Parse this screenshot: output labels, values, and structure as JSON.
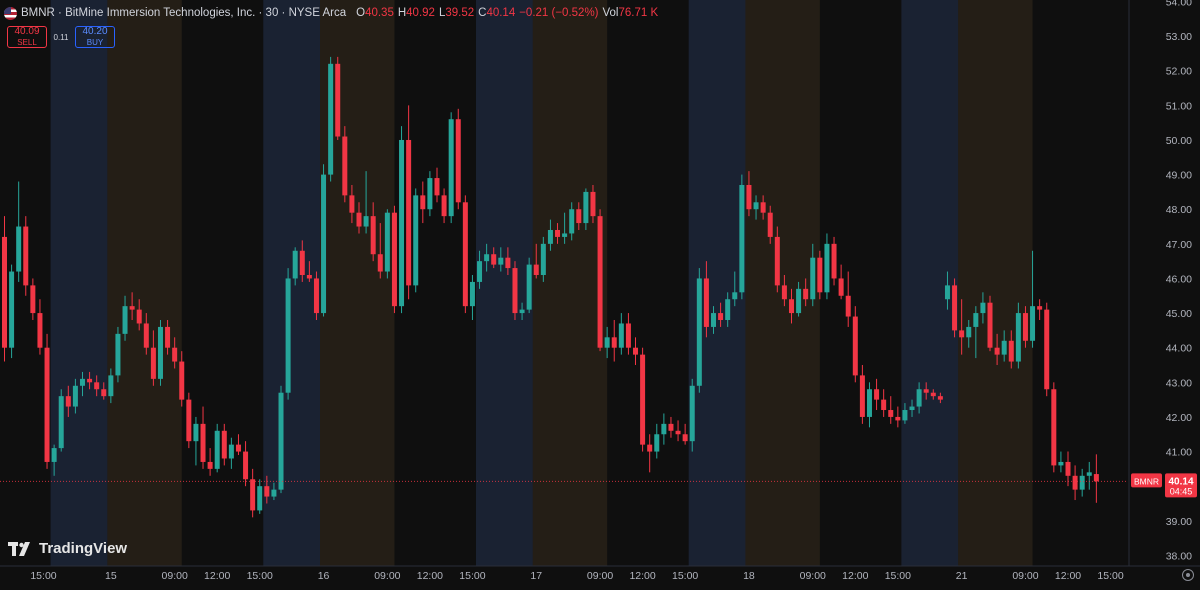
{
  "header": {
    "title": "BMNR · BitMine Immersion Technologies, Inc. · 30 · NYSE Arca",
    "ohlc": [
      {
        "k": "O",
        "v": "40.35"
      },
      {
        "k": "H",
        "v": "40.92"
      },
      {
        "k": "L",
        "v": "39.52"
      },
      {
        "k": "C",
        "v": "40.14"
      },
      {
        "k": "",
        "v": "−0.21 (−0.52%)"
      }
    ],
    "vol_label": "Vol",
    "vol_value": "76.71 K",
    "sell_price": "40.09",
    "sell_label": "SELL",
    "spread": "0.11",
    "buy_price": "40.20",
    "buy_label": "BUY"
  },
  "brand": "TradingView",
  "colors": {
    "up": "#26a69a",
    "down": "#f23645",
    "premarket_band": "#1a2232",
    "afterhours_band": "#241e16",
    "background": "#0f0f0f"
  },
  "chart_data": {
    "type": "candlestick",
    "symbol": "BMNR",
    "interval": "30",
    "exchange": "NYSE Arca",
    "price_range": [
      38.0,
      54.0
    ],
    "y_ticks": [
      "54.00",
      "53.00",
      "52.00",
      "51.00",
      "50.00",
      "49.00",
      "48.00",
      "47.00",
      "46.00",
      "45.00",
      "44.00",
      "43.00",
      "42.00",
      "41.00",
      "40.00",
      "39.00",
      "38.00"
    ],
    "x_ticks": [
      {
        "bar": 5.5,
        "label": "15:00"
      },
      {
        "bar": 15,
        "label": "15"
      },
      {
        "bar": 24,
        "label": "09:00"
      },
      {
        "bar": 30,
        "label": "12:00"
      },
      {
        "bar": 36,
        "label": "15:00"
      },
      {
        "bar": 45,
        "label": "16"
      },
      {
        "bar": 54,
        "label": "09:00"
      },
      {
        "bar": 60,
        "label": "12:00"
      },
      {
        "bar": 66,
        "label": "15:00"
      },
      {
        "bar": 75,
        "label": "17"
      },
      {
        "bar": 84,
        "label": "09:00"
      },
      {
        "bar": 90,
        "label": "12:00"
      },
      {
        "bar": 96,
        "label": "15:00"
      },
      {
        "bar": 105,
        "label": "18"
      },
      {
        "bar": 114,
        "label": "09:00"
      },
      {
        "bar": 120,
        "label": "12:00"
      },
      {
        "bar": 126,
        "label": "15:00"
      },
      {
        "bar": 135,
        "label": "21"
      },
      {
        "bar": 144,
        "label": "09:00"
      },
      {
        "bar": 150,
        "label": "12:00"
      },
      {
        "bar": 156,
        "label": "15:00"
      }
    ],
    "sessions": [
      {
        "type": "premarket",
        "from": 7,
        "to": 14.5
      },
      {
        "type": "afterhours",
        "from": 15,
        "to": 24.5
      },
      {
        "type": "premarket",
        "from": 37,
        "to": 44.5
      },
      {
        "type": "afterhours",
        "from": 45,
        "to": 54.5
      },
      {
        "type": "premarket",
        "from": 67,
        "to": 74.5
      },
      {
        "type": "afterhours",
        "from": 75,
        "to": 84.5
      },
      {
        "type": "premarket",
        "from": 97,
        "to": 104.5
      },
      {
        "type": "afterhours",
        "from": 105,
        "to": 114.5
      },
      {
        "type": "premarket",
        "from": 127,
        "to": 134.5
      },
      {
        "type": "afterhours",
        "from": 135,
        "to": 144.5
      }
    ],
    "last_price": {
      "label": "BMNR",
      "value": "40.14",
      "countdown": "04:45",
      "price": 40.14
    },
    "candles": [
      [
        47.2,
        47.8,
        43.6,
        44.0
      ],
      [
        44.0,
        46.4,
        43.7,
        46.2
      ],
      [
        46.2,
        48.8,
        45.9,
        47.5
      ],
      [
        47.5,
        47.8,
        45.5,
        45.8
      ],
      [
        45.8,
        46.0,
        44.8,
        45.0
      ],
      [
        45.0,
        45.4,
        43.8,
        44.0
      ],
      [
        44.0,
        44.4,
        40.5,
        40.7
      ],
      [
        40.7,
        41.2,
        40.3,
        41.1
      ],
      [
        41.1,
        42.8,
        41.0,
        42.6
      ],
      [
        42.6,
        42.9,
        42.0,
        42.3
      ],
      [
        42.3,
        43.1,
        42.1,
        42.9
      ],
      [
        42.9,
        43.3,
        42.6,
        43.1
      ],
      [
        43.1,
        43.3,
        42.8,
        43.0
      ],
      [
        43.0,
        43.2,
        42.6,
        42.8
      ],
      [
        42.8,
        43.0,
        42.5,
        42.6
      ],
      [
        42.6,
        43.4,
        42.4,
        43.2
      ],
      [
        43.2,
        44.6,
        43.0,
        44.4
      ],
      [
        44.4,
        45.5,
        44.2,
        45.2
      ],
      [
        45.2,
        45.6,
        44.8,
        45.1
      ],
      [
        45.1,
        45.4,
        44.5,
        44.7
      ],
      [
        44.7,
        45.0,
        43.8,
        44.0
      ],
      [
        44.0,
        44.5,
        42.9,
        43.1
      ],
      [
        43.1,
        44.8,
        42.9,
        44.6
      ],
      [
        44.6,
        44.8,
        43.8,
        44.0
      ],
      [
        44.0,
        44.3,
        43.4,
        43.6
      ],
      [
        43.6,
        43.9,
        42.3,
        42.5
      ],
      [
        42.5,
        42.7,
        41.1,
        41.3
      ],
      [
        41.3,
        42.0,
        40.6,
        41.8
      ],
      [
        41.8,
        42.3,
        40.5,
        40.7
      ],
      [
        40.7,
        41.1,
        40.3,
        40.5
      ],
      [
        40.5,
        41.8,
        40.4,
        41.6
      ],
      [
        41.6,
        41.8,
        40.6,
        40.8
      ],
      [
        40.8,
        41.4,
        40.5,
        41.2
      ],
      [
        41.2,
        41.5,
        40.9,
        41.0
      ],
      [
        41.0,
        41.3,
        40.0,
        40.2
      ],
      [
        40.2,
        40.5,
        39.1,
        39.3
      ],
      [
        39.3,
        40.2,
        39.2,
        40.0
      ],
      [
        40.0,
        40.3,
        39.5,
        39.7
      ],
      [
        39.7,
        40.1,
        39.6,
        39.9
      ],
      [
        39.9,
        42.9,
        39.8,
        42.7
      ],
      [
        42.7,
        46.3,
        42.5,
        46.0
      ],
      [
        46.0,
        46.9,
        45.8,
        46.8
      ],
      [
        46.8,
        47.1,
        45.9,
        46.1
      ],
      [
        46.1,
        46.5,
        45.9,
        46.0
      ],
      [
        46.0,
        46.2,
        44.8,
        45.0
      ],
      [
        45.0,
        49.3,
        44.9,
        49.0
      ],
      [
        49.0,
        52.4,
        48.8,
        52.2
      ],
      [
        52.2,
        52.4,
        50.0,
        50.1
      ],
      [
        50.1,
        50.4,
        48.2,
        48.4
      ],
      [
        48.4,
        48.7,
        47.6,
        47.9
      ],
      [
        47.9,
        48.2,
        47.3,
        47.5
      ],
      [
        47.5,
        49.1,
        47.3,
        47.8
      ],
      [
        47.8,
        48.2,
        46.5,
        46.7
      ],
      [
        46.7,
        47.6,
        46.0,
        46.2
      ],
      [
        46.2,
        48.0,
        46.0,
        47.9
      ],
      [
        47.9,
        48.1,
        45.0,
        45.2
      ],
      [
        45.2,
        50.4,
        45.0,
        50.0
      ],
      [
        50.0,
        51.0,
        45.4,
        45.8
      ],
      [
        45.8,
        48.6,
        45.6,
        48.4
      ],
      [
        48.4,
        48.8,
        47.6,
        48.0
      ],
      [
        48.0,
        49.1,
        47.8,
        48.9
      ],
      [
        48.9,
        49.2,
        48.2,
        48.4
      ],
      [
        48.4,
        48.6,
        47.6,
        47.8
      ],
      [
        47.8,
        50.8,
        47.6,
        50.6
      ],
      [
        50.6,
        50.9,
        48.0,
        48.2
      ],
      [
        48.2,
        48.4,
        45.0,
        45.2
      ],
      [
        45.2,
        46.1,
        44.8,
        45.9
      ],
      [
        45.9,
        46.8,
        45.7,
        46.5
      ],
      [
        46.5,
        47.0,
        46.2,
        46.7
      ],
      [
        46.7,
        46.9,
        46.3,
        46.4
      ],
      [
        46.4,
        46.9,
        46.2,
        46.6
      ],
      [
        46.6,
        46.9,
        46.1,
        46.3
      ],
      [
        46.3,
        46.5,
        44.8,
        45.0
      ],
      [
        45.0,
        45.3,
        44.8,
        45.1
      ],
      [
        45.1,
        46.6,
        45.0,
        46.4
      ],
      [
        46.4,
        47.0,
        46.0,
        46.1
      ],
      [
        46.1,
        47.2,
        45.9,
        47.0
      ],
      [
        47.0,
        47.7,
        46.8,
        47.4
      ],
      [
        47.4,
        47.6,
        47.0,
        47.2
      ],
      [
        47.2,
        47.9,
        47.0,
        47.3
      ],
      [
        47.3,
        48.2,
        47.1,
        48.0
      ],
      [
        48.0,
        48.2,
        47.4,
        47.6
      ],
      [
        47.6,
        48.6,
        47.4,
        48.5
      ],
      [
        48.5,
        48.7,
        47.6,
        47.8
      ],
      [
        47.8,
        48.0,
        43.9,
        44.0
      ],
      [
        44.0,
        44.6,
        43.7,
        44.3
      ],
      [
        44.3,
        44.8,
        43.6,
        44.0
      ],
      [
        44.0,
        45.0,
        43.8,
        44.7
      ],
      [
        44.7,
        45.0,
        43.8,
        44.0
      ],
      [
        44.0,
        44.3,
        43.5,
        43.8
      ],
      [
        43.8,
        44.0,
        41.0,
        41.2
      ],
      [
        41.2,
        41.5,
        40.4,
        41.0
      ],
      [
        41.0,
        41.8,
        40.8,
        41.5
      ],
      [
        41.5,
        42.1,
        41.2,
        41.8
      ],
      [
        41.8,
        42.0,
        41.4,
        41.6
      ],
      [
        41.6,
        41.9,
        41.3,
        41.5
      ],
      [
        41.5,
        41.8,
        41.2,
        41.3
      ],
      [
        41.3,
        43.1,
        41.0,
        42.9
      ],
      [
        42.9,
        46.3,
        42.7,
        46.0
      ],
      [
        46.0,
        46.5,
        44.3,
        44.6
      ],
      [
        44.6,
        45.2,
        44.4,
        45.0
      ],
      [
        45.0,
        45.3,
        44.6,
        44.8
      ],
      [
        44.8,
        45.6,
        44.6,
        45.4
      ],
      [
        45.4,
        46.2,
        45.2,
        45.6
      ],
      [
        45.6,
        49.0,
        45.4,
        48.7
      ],
      [
        48.7,
        49.1,
        47.8,
        48.0
      ],
      [
        48.0,
        48.4,
        47.7,
        48.2
      ],
      [
        48.2,
        48.4,
        47.7,
        47.9
      ],
      [
        47.9,
        48.1,
        47.0,
        47.2
      ],
      [
        47.2,
        47.5,
        45.6,
        45.8
      ],
      [
        45.8,
        46.1,
        45.2,
        45.4
      ],
      [
        45.4,
        45.7,
        44.7,
        45.0
      ],
      [
        45.0,
        45.9,
        44.9,
        45.7
      ],
      [
        45.7,
        46.0,
        45.2,
        45.4
      ],
      [
        45.4,
        47.0,
        45.2,
        46.6
      ],
      [
        46.6,
        46.8,
        45.4,
        45.6
      ],
      [
        45.6,
        47.3,
        45.4,
        47.0
      ],
      [
        47.0,
        47.2,
        45.8,
        46.0
      ],
      [
        46.0,
        46.4,
        45.4,
        45.5
      ],
      [
        45.5,
        46.2,
        44.6,
        44.9
      ],
      [
        44.9,
        45.2,
        43.0,
        43.2
      ],
      [
        43.2,
        43.5,
        41.8,
        42.0
      ],
      [
        42.0,
        43.0,
        41.7,
        42.8
      ],
      [
        42.8,
        43.1,
        42.2,
        42.5
      ],
      [
        42.5,
        42.8,
        42.0,
        42.2
      ],
      [
        42.2,
        42.6,
        41.8,
        42.0
      ],
      [
        42.0,
        42.3,
        41.7,
        41.9
      ],
      [
        41.9,
        42.4,
        41.8,
        42.2
      ],
      [
        42.2,
        42.5,
        42.0,
        42.3
      ],
      [
        42.3,
        43.0,
        42.1,
        42.8
      ],
      [
        42.8,
        43.0,
        42.5,
        42.7
      ],
      [
        42.7,
        42.8,
        42.5,
        42.6
      ],
      [
        42.6,
        42.7,
        42.4,
        42.5
      ],
      [
        45.4,
        46.2,
        45.1,
        45.8
      ],
      [
        45.8,
        46.0,
        44.3,
        44.5
      ],
      [
        44.5,
        45.4,
        43.8,
        44.3
      ],
      [
        44.3,
        44.8,
        44.0,
        44.6
      ],
      [
        44.6,
        45.2,
        43.7,
        45.0
      ],
      [
        45.0,
        45.6,
        44.7,
        45.3
      ],
      [
        45.3,
        45.5,
        43.9,
        44.0
      ],
      [
        44.0,
        44.4,
        43.5,
        43.8
      ],
      [
        43.8,
        44.5,
        43.6,
        44.2
      ],
      [
        44.2,
        44.5,
        43.4,
        43.6
      ],
      [
        43.6,
        45.3,
        43.4,
        45.0
      ],
      [
        45.0,
        45.2,
        44.0,
        44.2
      ],
      [
        44.2,
        46.8,
        44.0,
        45.2
      ],
      [
        45.2,
        45.4,
        44.8,
        45.1
      ],
      [
        45.1,
        45.3,
        42.6,
        42.8
      ],
      [
        42.8,
        43.0,
        40.4,
        40.6
      ],
      [
        40.6,
        41.0,
        40.4,
        40.7
      ],
      [
        40.7,
        41.0,
        40.0,
        40.3
      ],
      [
        40.3,
        40.6,
        39.6,
        39.9
      ],
      [
        39.9,
        40.5,
        39.7,
        40.3
      ],
      [
        40.3,
        40.7,
        39.9,
        40.4
      ],
      [
        40.35,
        40.92,
        39.52,
        40.14
      ]
    ]
  }
}
